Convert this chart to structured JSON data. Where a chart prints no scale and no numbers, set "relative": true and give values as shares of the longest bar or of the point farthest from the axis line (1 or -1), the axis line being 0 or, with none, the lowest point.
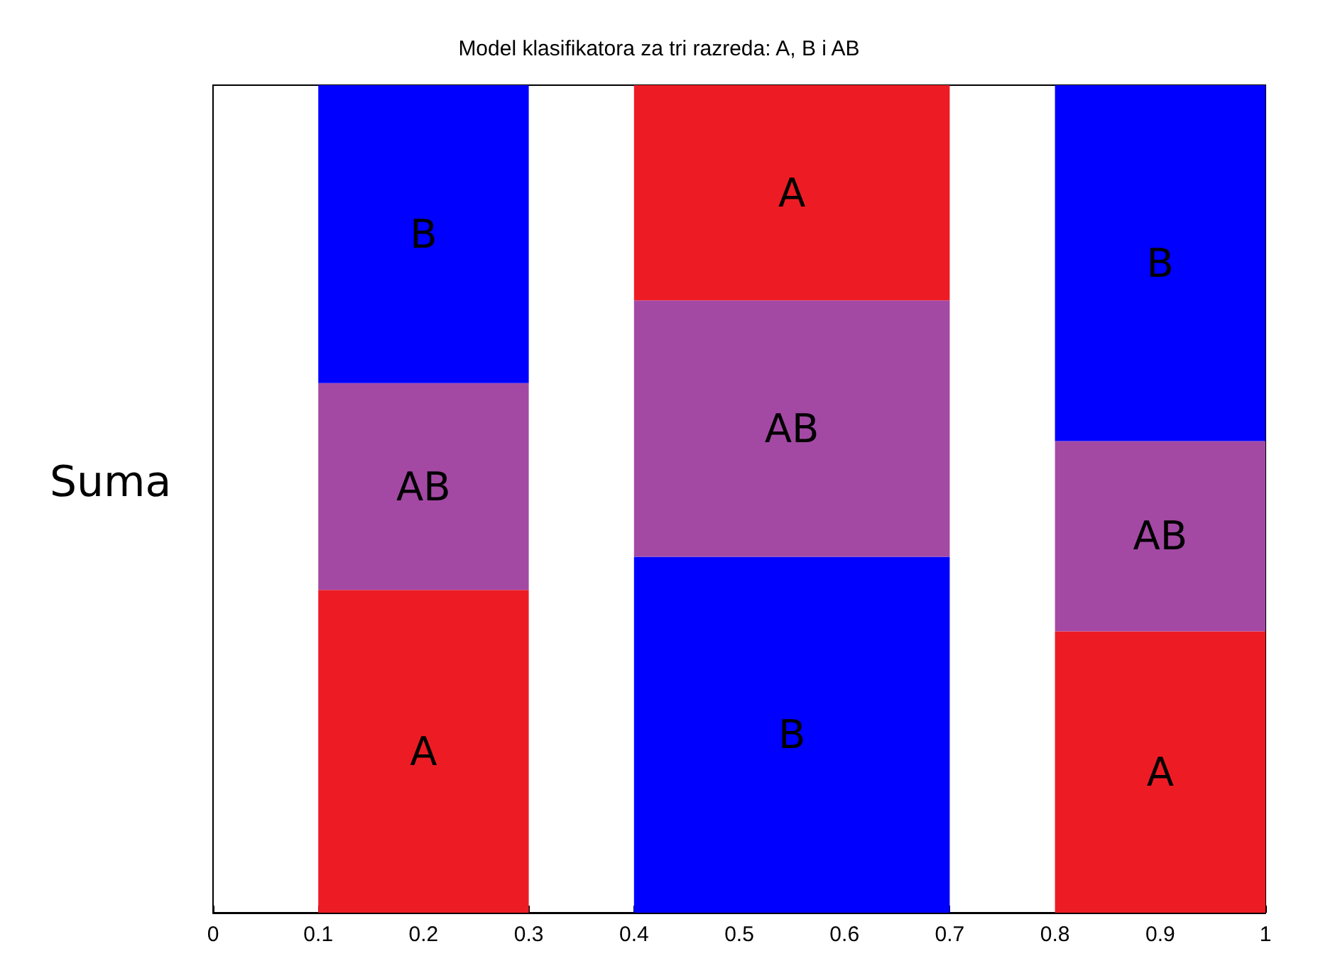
{
  "chart_data": {
    "type": "bar",
    "title": "Model klasifikatora za tri razreda: A, B i AB",
    "ylabel": "Suma",
    "x": [
      0.2,
      0.55,
      0.9
    ],
    "xlim": [
      0,
      1
    ],
    "xticks": [
      0,
      0.1,
      0.2,
      0.3,
      0.4,
      0.5,
      0.6,
      0.7,
      0.8,
      0.9,
      1
    ],
    "stacked": true,
    "relative": true,
    "grid": false,
    "series": [
      {
        "colors": [
          "#ed1c24",
          "#0000ff",
          "#ed1c24"
        ],
        "values": [
          0.39,
          0.43,
          0.34
        ]
      },
      {
        "colors": [
          "#a349a4",
          "#a349a4",
          "#a349a4"
        ],
        "values": [
          0.25,
          0.31,
          0.23
        ]
      },
      {
        "colors": [
          "#0000ff",
          "#ed1c24",
          "#0000ff"
        ],
        "values": [
          0.36,
          0.26,
          0.43
        ]
      }
    ],
    "annotations": [
      "A",
      "AB",
      "B",
      "B",
      "AB",
      "A",
      "A",
      "AB",
      "B"
    ]
  }
}
